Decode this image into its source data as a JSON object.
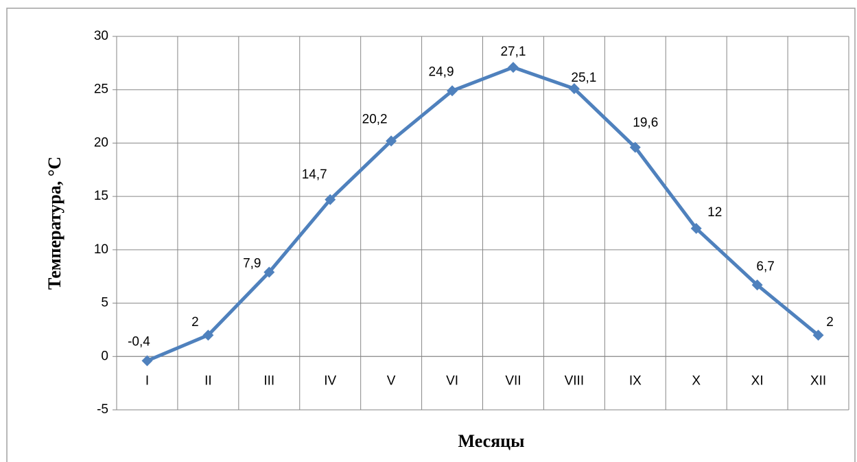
{
  "chart_data": {
    "type": "line",
    "y_label": "Температура,  °С",
    "x_label": "Месяцы",
    "categories": [
      "I",
      "II",
      "III",
      "IV",
      "V",
      "VI",
      "VII",
      "VIII",
      "IX",
      "X",
      "XI",
      "XII"
    ],
    "series": [
      {
        "color": "#4f81bd",
        "values": [
          -0.4,
          2,
          7.9,
          14.7,
          20.2,
          24.9,
          27.1,
          25.1,
          19.6,
          12,
          6.7,
          2
        ],
        "value_labels": [
          "-0,4",
          "2",
          "7,9",
          "14,7",
          "20,2",
          "24,9",
          "27,1",
          "25,1",
          "19,6",
          "12",
          "6,7",
          "2"
        ]
      }
    ],
    "ylim": [
      -5,
      30
    ],
    "yticks": [
      -5,
      0,
      5,
      10,
      15,
      20,
      25,
      30
    ],
    "grid": true
  }
}
